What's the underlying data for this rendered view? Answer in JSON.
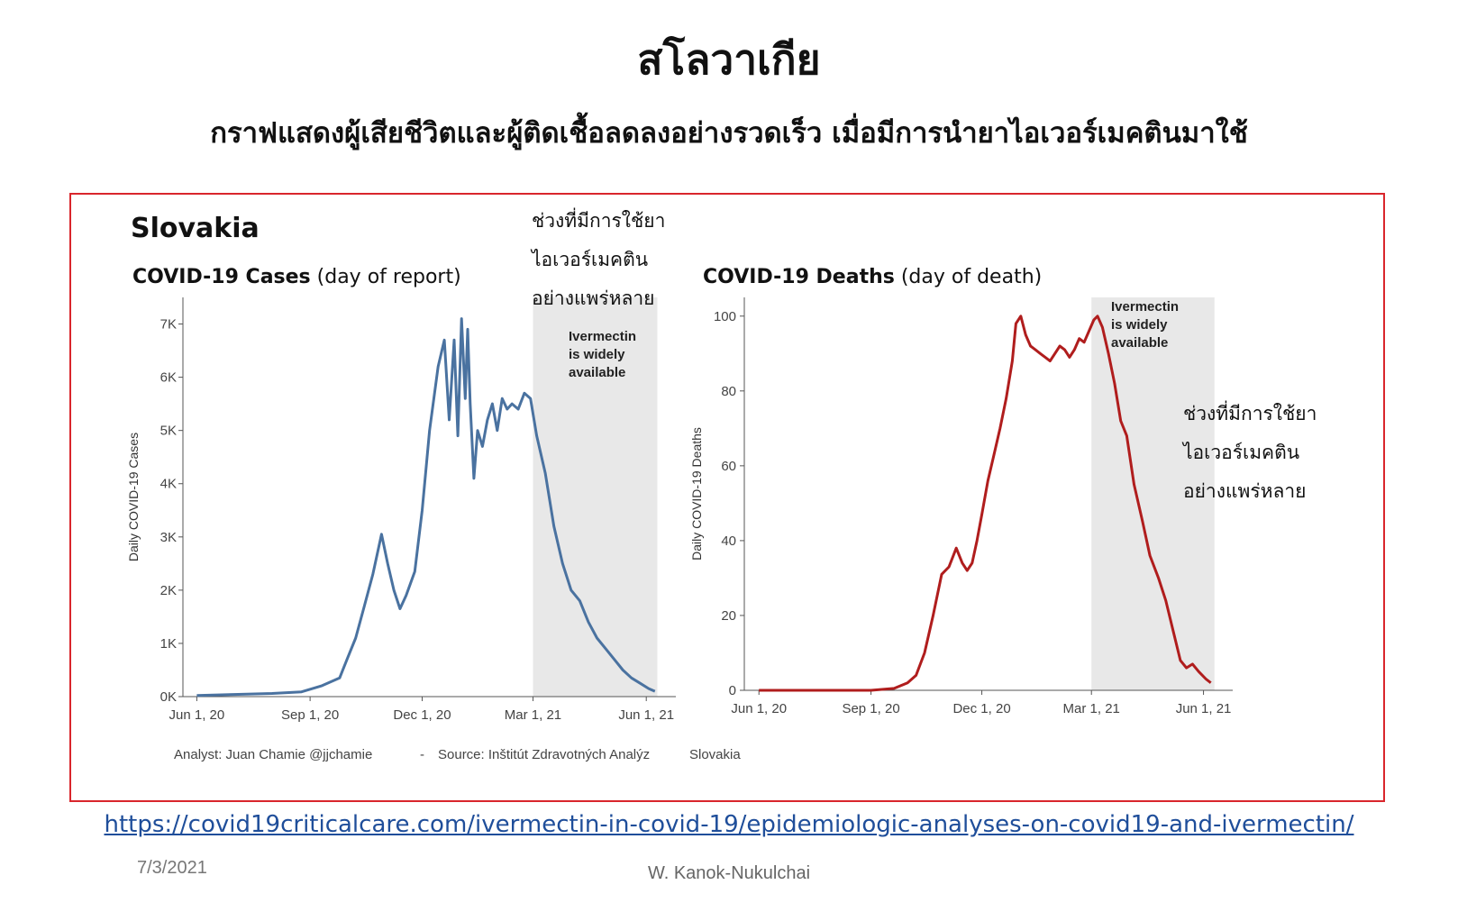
{
  "slide": {
    "title": "สโลวาเกีย",
    "subtitle": "กราฟแสดงผู้เสียชีวิตและผู้ติดเชื้อลดลงอย่างรวดเร็ว เมื่อมีการนำยาไอเวอร์เมคตินมาใช้",
    "link": "https://covid19criticalcare.com/ivermectin-in-covid-19/epidemiologic-analyses-on-covid19-and-ivermectin/",
    "date": "7/3/2021",
    "author": "W. Kanok-Nukulchai",
    "frame_color": "#d9262c"
  },
  "figure": {
    "country": "Slovakia",
    "credit_analyst": "Analyst: Juan Chamie @jjchamie",
    "credit_sep": "-",
    "credit_source": "Source: Inštitút Zdravotných Analýz",
    "credit_country": "Slovakia",
    "shade_label": [
      "Ivermectin",
      "is widely",
      "available"
    ],
    "thai_note": [
      "ช่วงที่มีการใช้ยา",
      "ไอเวอร์เมคติน",
      "อย่างแพร่หลาย"
    ]
  },
  "chart_data": [
    {
      "type": "line",
      "title_bold": "COVID-19 Cases",
      "title_rest": " (day of report)",
      "ylabel": "Daily COVID-19 Cases",
      "color": "#4a72a0",
      "x_ticks": [
        "Jun 1, 20",
        "Sep 1, 20",
        "Dec 1, 20",
        "Mar 1, 21",
        "Jun 1, 21"
      ],
      "x_tick_dates": [
        "2020-06-01",
        "2020-09-01",
        "2020-12-01",
        "2021-03-01",
        "2021-06-01"
      ],
      "y_ticks": [
        "0K",
        "1K",
        "2K",
        "3K",
        "4K",
        "5K",
        "6K",
        "7K"
      ],
      "y_tick_values": [
        0,
        1000,
        2000,
        3000,
        4000,
        5000,
        6000,
        7000
      ],
      "ylim": [
        0,
        7500
      ],
      "shaded_range": [
        "2021-03-01",
        "2021-06-10"
      ],
      "x": [
        "2020-06-01",
        "2020-07-01",
        "2020-08-01",
        "2020-08-25",
        "2020-09-10",
        "2020-09-25",
        "2020-10-01",
        "2020-10-08",
        "2020-10-15",
        "2020-10-22",
        "2020-10-29",
        "2020-11-03",
        "2020-11-08",
        "2020-11-13",
        "2020-11-18",
        "2020-11-25",
        "2020-12-01",
        "2020-12-07",
        "2020-12-14",
        "2020-12-19",
        "2020-12-23",
        "2020-12-27",
        "2020-12-30",
        "2021-01-02",
        "2021-01-05",
        "2021-01-07",
        "2021-01-09",
        "2021-01-12",
        "2021-01-15",
        "2021-01-19",
        "2021-01-23",
        "2021-01-27",
        "2021-01-31",
        "2021-02-04",
        "2021-02-08",
        "2021-02-12",
        "2021-02-17",
        "2021-02-22",
        "2021-02-27",
        "2021-03-04",
        "2021-03-11",
        "2021-03-18",
        "2021-03-25",
        "2021-04-01",
        "2021-04-08",
        "2021-04-15",
        "2021-04-22",
        "2021-04-29",
        "2021-05-06",
        "2021-05-13",
        "2021-05-20",
        "2021-05-27",
        "2021-06-03",
        "2021-06-08"
      ],
      "y": [
        20,
        40,
        60,
        90,
        200,
        350,
        700,
        1100,
        1700,
        2300,
        3050,
        2500,
        2000,
        1650,
        1900,
        2350,
        3500,
        5000,
        6200,
        6700,
        5200,
        6700,
        4900,
        7100,
        5600,
        6900,
        5500,
        4100,
        5000,
        4700,
        5200,
        5500,
        5000,
        5600,
        5400,
        5500,
        5400,
        5700,
        5600,
        4900,
        4200,
        3200,
        2500,
        2000,
        1800,
        1400,
        1100,
        900,
        700,
        500,
        350,
        250,
        150,
        100
      ]
    },
    {
      "type": "line",
      "title_bold": "COVID-19 Deaths",
      "title_rest": " (day of death)",
      "ylabel": "Daily COVID-19 Deaths",
      "color": "#b01d1d",
      "x_ticks": [
        "Jun 1, 20",
        "Sep 1, 20",
        "Dec 1, 20",
        "Mar 1, 21",
        "Jun 1, 21"
      ],
      "x_tick_dates": [
        "2020-06-01",
        "2020-09-01",
        "2020-12-01",
        "2021-03-01",
        "2021-06-01"
      ],
      "y_ticks": [
        "0",
        "20",
        "40",
        "60",
        "80",
        "100"
      ],
      "y_tick_values": [
        0,
        20,
        40,
        60,
        80,
        100
      ],
      "ylim": [
        0,
        105
      ],
      "shaded_range": [
        "2021-03-01",
        "2021-06-10"
      ],
      "x": [
        "2020-06-01",
        "2020-07-15",
        "2020-09-01",
        "2020-09-20",
        "2020-10-01",
        "2020-10-08",
        "2020-10-15",
        "2020-10-22",
        "2020-10-29",
        "2020-11-04",
        "2020-11-10",
        "2020-11-15",
        "2020-11-19",
        "2020-11-23",
        "2020-11-27",
        "2020-12-01",
        "2020-12-06",
        "2020-12-11",
        "2020-12-16",
        "2020-12-21",
        "2020-12-26",
        "2020-12-29",
        "2021-01-02",
        "2021-01-06",
        "2021-01-10",
        "2021-01-14",
        "2021-01-18",
        "2021-01-22",
        "2021-01-26",
        "2021-01-30",
        "2021-02-03",
        "2021-02-07",
        "2021-02-11",
        "2021-02-15",
        "2021-02-19",
        "2021-02-23",
        "2021-02-27",
        "2021-03-03",
        "2021-03-06",
        "2021-03-10",
        "2021-03-15",
        "2021-03-20",
        "2021-03-25",
        "2021-03-30",
        "2021-04-05",
        "2021-04-12",
        "2021-04-18",
        "2021-04-25",
        "2021-05-01",
        "2021-05-07",
        "2021-05-13",
        "2021-05-18",
        "2021-05-23",
        "2021-05-28",
        "2021-06-03",
        "2021-06-07"
      ],
      "y": [
        0,
        0,
        0,
        0.5,
        2,
        4,
        10,
        20,
        31,
        33,
        38,
        34,
        32,
        34,
        40,
        47,
        56,
        63,
        70,
        78,
        88,
        98,
        100,
        95,
        92,
        91,
        90,
        89,
        88,
        90,
        92,
        91,
        89,
        91,
        94,
        93,
        96,
        99,
        100,
        97,
        90,
        82,
        72,
        68,
        55,
        45,
        36,
        30,
        24,
        16,
        8,
        6,
        7,
        5,
        3,
        2
      ]
    }
  ]
}
